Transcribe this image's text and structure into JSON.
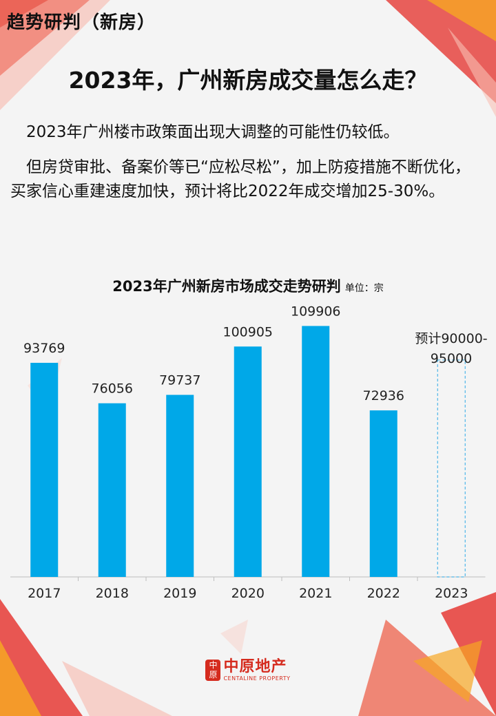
{
  "header": {
    "section_label": "趋势研判（新房）",
    "title": "2023年，广州新房成交量怎么走？"
  },
  "body": {
    "paragraph_1": "2023年广州楼市政策面出现大调整的可能性仍较低。",
    "paragraph_2": "但房贷审批、备案价等已“应松尽松”，加上防疫措施不断优化，买家信心重建速度加快，预计将比2022年成交增加25-30%。"
  },
  "colors": {
    "bar": "#00a8e8",
    "forecast_outline": "#4ab5e8",
    "brand_red": "#d52b1e"
  },
  "chart_data": {
    "type": "bar",
    "title": "2023年广州新房市场成交走势研判",
    "unit": "单位：宗",
    "categories": [
      "2017",
      "2018",
      "2019",
      "2020",
      "2021",
      "2022",
      "2023"
    ],
    "values": [
      93769,
      76056,
      79737,
      100905,
      109906,
      72936,
      null
    ],
    "value_labels": [
      "93769",
      "76056",
      "79737",
      "100905",
      "109906",
      "72936",
      null
    ],
    "forecast": {
      "category": "2023",
      "range": [
        90000,
        95000
      ],
      "label": "预计90000-95000"
    },
    "ylim": [
      0,
      120000
    ],
    "grid": false,
    "legend": "none"
  },
  "footer": {
    "logo_seal": "中原",
    "logo_cn": "中原地产",
    "logo_en": "CENTALINE PROPERTY"
  }
}
